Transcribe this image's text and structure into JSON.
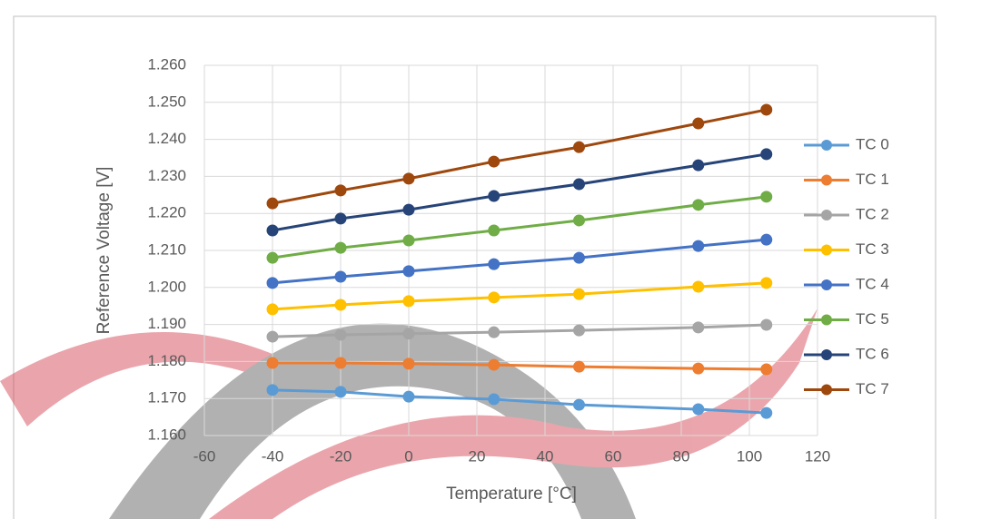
{
  "chart_data": {
    "type": "line",
    "x_label": "Temperature [°C]",
    "y_label": "Reference Voltage [V]",
    "x": [
      -40,
      -20,
      0,
      25,
      50,
      85,
      105
    ],
    "series": [
      {
        "name": "TC 0",
        "color": "#5b9bd5",
        "values": [
          1.1723,
          1.1718,
          1.1705,
          1.1698,
          1.1683,
          1.1671,
          1.1661
        ]
      },
      {
        "name": "TC 1",
        "color": "#ed7d31",
        "values": [
          1.1796,
          1.1796,
          1.1794,
          1.1791,
          1.1786,
          1.1781,
          1.1779
        ]
      },
      {
        "name": "TC 2",
        "color": "#a5a5a5",
        "values": [
          1.1867,
          1.1872,
          1.1875,
          1.1879,
          1.1884,
          1.1892,
          1.1899
        ]
      },
      {
        "name": "TC 3",
        "color": "#ffc000",
        "values": [
          1.1941,
          1.1953,
          1.1963,
          1.1973,
          1.1982,
          1.2002,
          1.2012
        ]
      },
      {
        "name": "TC 4",
        "color": "#4472c4",
        "values": [
          1.2012,
          1.2029,
          1.2044,
          1.2063,
          1.208,
          1.2112,
          1.2129
        ]
      },
      {
        "name": "TC 5",
        "color": "#70ad47",
        "values": [
          1.208,
          1.2107,
          1.2127,
          1.2154,
          1.2181,
          1.2223,
          1.2245
        ]
      },
      {
        "name": "TC 6",
        "color": "#264478",
        "values": [
          1.2154,
          1.2186,
          1.221,
          1.2247,
          1.2279,
          1.233,
          1.236
        ]
      },
      {
        "name": "TC 7",
        "color": "#9e480e",
        "values": [
          1.2227,
          1.2262,
          1.2294,
          1.234,
          1.2379,
          1.2443,
          1.248
        ]
      }
    ],
    "xlim": [
      -60,
      120
    ],
    "xticks": [
      -60,
      -40,
      -20,
      0,
      20,
      40,
      60,
      80,
      100,
      120
    ],
    "ylim": [
      1.16,
      1.26
    ],
    "yticks": [
      {
        "value": 1.16,
        "label": "1.160"
      },
      {
        "value": 1.17,
        "label": "1.170"
      },
      {
        "value": 1.18,
        "label": "1.180"
      },
      {
        "value": 1.19,
        "label": "1.190"
      },
      {
        "value": 1.2,
        "label": "1.200"
      },
      {
        "value": 1.21,
        "label": "1.210"
      },
      {
        "value": 1.22,
        "label": "1.220"
      },
      {
        "value": 1.23,
        "label": "1.230"
      },
      {
        "value": 1.24,
        "label": "1.240"
      },
      {
        "value": 1.25,
        "label": "1.250"
      },
      {
        "value": 1.26,
        "label": "1.260"
      }
    ],
    "grid": true,
    "legend": "right"
  }
}
